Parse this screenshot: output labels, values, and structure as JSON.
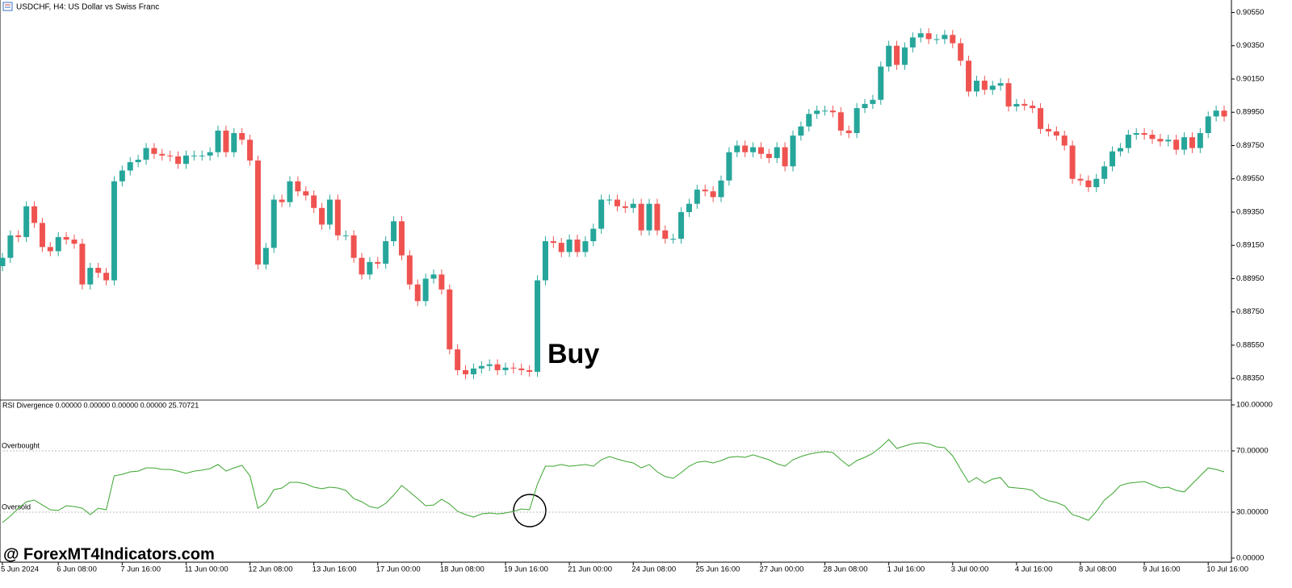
{
  "header": "USDCHF, H4:  US Dollar vs Swiss Franc",
  "watermark": "@ ForexMT4Indicators.com",
  "chart_data": [
    {
      "type": "candlestick",
      "annotation": "Buy",
      "up_color": "#26a69a",
      "down_color": "#ef5350",
      "ylim": [
        0.88225,
        0.90625
      ],
      "yticks": [
        {
          "value": 0.9055,
          "label": "0.90550"
        },
        {
          "value": 0.9035,
          "label": "0.90350"
        },
        {
          "value": 0.9015,
          "label": "0.90150"
        },
        {
          "value": 0.8995,
          "label": "0.89950"
        },
        {
          "value": 0.8975,
          "label": "0.89750"
        },
        {
          "value": 0.8955,
          "label": "0.89550"
        },
        {
          "value": 0.8935,
          "label": "0.89350"
        },
        {
          "value": 0.8915,
          "label": "0.89150"
        },
        {
          "value": 0.8895,
          "label": "0.88950"
        },
        {
          "value": 0.8875,
          "label": "0.88750"
        },
        {
          "value": 0.8855,
          "label": "0.88550"
        },
        {
          "value": 0.8835,
          "label": "0.88350"
        }
      ],
      "categories": [
        "5 Jun 2024",
        null,
        null,
        null,
        null,
        null,
        null,
        "6 Jun 08:00",
        null,
        null,
        null,
        null,
        null,
        null,
        null,
        "7 Jun 16:00",
        null,
        null,
        null,
        null,
        null,
        null,
        null,
        "11 Jun 00:00",
        null,
        null,
        null,
        null,
        null,
        null,
        null,
        "12 Jun 08:00",
        null,
        null,
        null,
        null,
        null,
        null,
        null,
        "13 Jun 16:00",
        null,
        null,
        null,
        null,
        null,
        null,
        null,
        "17 Jun 00:00",
        null,
        null,
        null,
        null,
        null,
        null,
        null,
        "18 Jun 08:00",
        null,
        null,
        null,
        null,
        null,
        null,
        null,
        "19 Jun 16:00",
        null,
        null,
        null,
        null,
        null,
        null,
        null,
        "21 Jun 00:00",
        null,
        null,
        null,
        null,
        null,
        null,
        null,
        "24 Jun 08:00",
        null,
        null,
        null,
        null,
        null,
        null,
        null,
        "25 Jun 16:00",
        null,
        null,
        null,
        null,
        null,
        null,
        null,
        "27 Jun 00:00",
        null,
        null,
        null,
        null,
        null,
        null,
        null,
        "28 Jun 08:00",
        null,
        null,
        null,
        null,
        null,
        null,
        null,
        "1 Jul 16:00",
        null,
        null,
        null,
        null,
        null,
        null,
        null,
        "3 Jul 00:00",
        null,
        null,
        null,
        null,
        null,
        null,
        null,
        "4 Jul 16:00",
        null,
        null,
        null,
        null,
        null,
        null,
        null,
        "8 Jul 08:00",
        null,
        null,
        null,
        null,
        null,
        null,
        null,
        "9 Jul 16:00",
        null,
        null,
        null,
        null,
        null,
        null,
        null,
        "10 Jul 16:00",
        null,
        null
      ],
      "open": [
        0.89025,
        0.89075,
        0.8921,
        0.892,
        0.89385,
        0.89285,
        0.8914,
        0.89115,
        0.892,
        0.89185,
        0.8916,
        0.88915,
        0.89015,
        0.88985,
        0.8894,
        0.89535,
        0.896,
        0.8965,
        0.89665,
        0.89735,
        0.897,
        0.8969,
        0.89685,
        0.8964,
        0.8969,
        0.8969,
        0.8969,
        0.8971,
        0.8984,
        0.8971,
        0.89825,
        0.89785,
        0.8966,
        0.89035,
        0.89135,
        0.89425,
        0.8941,
        0.89535,
        0.89475,
        0.8945,
        0.89375,
        0.89275,
        0.89425,
        0.8921,
        0.8921,
        0.89075,
        0.88975,
        0.8905,
        0.8904,
        0.89175,
        0.89295,
        0.8909,
        0.88915,
        0.88815,
        0.8895,
        0.88975,
        0.88885,
        0.88525,
        0.884,
        0.88375,
        0.8841,
        0.88425,
        0.88435,
        0.884,
        0.88415,
        0.8841,
        0.884,
        0.8839,
        0.8894,
        0.89175,
        0.89165,
        0.8911,
        0.89185,
        0.8911,
        0.89175,
        0.8925,
        0.89425,
        0.89425,
        0.89385,
        0.89375,
        0.894,
        0.8924,
        0.894,
        0.8924,
        0.8919,
        0.8919,
        0.8935,
        0.894,
        0.89485,
        0.89475,
        0.8944,
        0.8954,
        0.8971,
        0.8975,
        0.8971,
        0.8974,
        0.897,
        0.89675,
        0.8974,
        0.89625,
        0.8981,
        0.89865,
        0.8994,
        0.8996,
        0.8996,
        0.8995,
        0.8984,
        0.89825,
        0.89975,
        0.9,
        0.90025,
        0.90225,
        0.9035,
        0.90235,
        0.9034,
        0.904,
        0.90425,
        0.9039,
        0.9039,
        0.90415,
        0.90365,
        0.9026,
        0.90075,
        0.9014,
        0.90085,
        0.9011,
        0.90125,
        0.89985,
        0.9,
        0.8999,
        0.89975,
        0.8985,
        0.89835,
        0.8981,
        0.8975,
        0.8955,
        0.8954,
        0.895,
        0.8955,
        0.89625,
        0.89715,
        0.89735,
        0.89815,
        0.89825,
        0.89815,
        0.8979,
        0.89775,
        0.89785,
        0.89725,
        0.898,
        0.89735,
        0.89825,
        0.89925,
        0.8996
      ],
      "high": [
        0.89105,
        0.8924,
        0.8924,
        0.89415,
        0.89415,
        0.89315,
        0.8917,
        0.8923,
        0.8923,
        0.89215,
        0.8919,
        0.89045,
        0.89045,
        0.89015,
        0.89565,
        0.8963,
        0.8968,
        0.89695,
        0.89765,
        0.89765,
        0.8973,
        0.8972,
        0.89715,
        0.8972,
        0.8972,
        0.8972,
        0.8974,
        0.8987,
        0.8987,
        0.89855,
        0.89855,
        0.89815,
        0.8969,
        0.89165,
        0.89455,
        0.89455,
        0.89565,
        0.89565,
        0.89505,
        0.8948,
        0.89405,
        0.89455,
        0.89455,
        0.8924,
        0.8924,
        0.89105,
        0.8908,
        0.8908,
        0.89205,
        0.89325,
        0.89325,
        0.8912,
        0.88945,
        0.8898,
        0.89005,
        0.89005,
        0.88915,
        0.88555,
        0.8843,
        0.8844,
        0.88455,
        0.88465,
        0.88465,
        0.88445,
        0.88445,
        0.8844,
        0.8843,
        0.8897,
        0.89205,
        0.89205,
        0.89195,
        0.89215,
        0.89215,
        0.89205,
        0.8928,
        0.89455,
        0.89455,
        0.89455,
        0.89415,
        0.8943,
        0.8943,
        0.8943,
        0.8943,
        0.8927,
        0.8922,
        0.8938,
        0.8943,
        0.89515,
        0.89515,
        0.89505,
        0.8957,
        0.8974,
        0.8978,
        0.8978,
        0.8977,
        0.8977,
        0.8973,
        0.8977,
        0.8977,
        0.8984,
        0.89895,
        0.8997,
        0.8999,
        0.8999,
        0.8999,
        0.8998,
        0.8987,
        0.90005,
        0.9003,
        0.90055,
        0.90255,
        0.9038,
        0.9038,
        0.9037,
        0.9043,
        0.90455,
        0.90455,
        0.9042,
        0.90445,
        0.90445,
        0.90395,
        0.9029,
        0.9017,
        0.9017,
        0.9014,
        0.90155,
        0.90155,
        0.9003,
        0.9003,
        0.9002,
        0.90005,
        0.8988,
        0.89865,
        0.8984,
        0.8978,
        0.8958,
        0.8957,
        0.8958,
        0.89655,
        0.89745,
        0.89765,
        0.89845,
        0.89855,
        0.89855,
        0.89845,
        0.8982,
        0.89815,
        0.89815,
        0.8983,
        0.8983,
        0.89855,
        0.89955,
        0.8999,
        0.8999
      ],
      "low": [
        0.88995,
        0.89045,
        0.8917,
        0.8917,
        0.89255,
        0.8911,
        0.89085,
        0.89085,
        0.89155,
        0.8913,
        0.88885,
        0.88885,
        0.88955,
        0.8891,
        0.8891,
        0.89505,
        0.8957,
        0.8962,
        0.89635,
        0.8967,
        0.8966,
        0.89655,
        0.8961,
        0.8961,
        0.8966,
        0.8966,
        0.8966,
        0.8968,
        0.8968,
        0.8968,
        0.89755,
        0.8963,
        0.89005,
        0.89005,
        0.89105,
        0.8938,
        0.8938,
        0.89445,
        0.8942,
        0.89345,
        0.89245,
        0.89245,
        0.8918,
        0.8918,
        0.89045,
        0.88945,
        0.88945,
        0.8901,
        0.8901,
        0.89145,
        0.8906,
        0.88885,
        0.88785,
        0.88785,
        0.8892,
        0.88855,
        0.88495,
        0.8837,
        0.88345,
        0.88345,
        0.8838,
        0.88395,
        0.8837,
        0.8837,
        0.8838,
        0.8837,
        0.8836,
        0.8836,
        0.8891,
        0.89135,
        0.8908,
        0.8908,
        0.8908,
        0.8908,
        0.89145,
        0.8922,
        0.89395,
        0.89355,
        0.89345,
        0.89345,
        0.8921,
        0.8921,
        0.8921,
        0.8916,
        0.8916,
        0.8916,
        0.8932,
        0.8937,
        0.89445,
        0.8941,
        0.8941,
        0.8951,
        0.8968,
        0.8968,
        0.8968,
        0.8967,
        0.89645,
        0.89645,
        0.89595,
        0.89595,
        0.8978,
        0.89835,
        0.8991,
        0.8993,
        0.8992,
        0.8981,
        0.89795,
        0.89795,
        0.89945,
        0.8997,
        0.89995,
        0.90195,
        0.90205,
        0.90205,
        0.9031,
        0.9037,
        0.9036,
        0.9036,
        0.9036,
        0.90335,
        0.9023,
        0.90045,
        0.90045,
        0.90055,
        0.90055,
        0.9008,
        0.89955,
        0.89955,
        0.8996,
        0.89945,
        0.8982,
        0.89805,
        0.8978,
        0.8972,
        0.8952,
        0.8951,
        0.8947,
        0.8947,
        0.8952,
        0.89595,
        0.89685,
        0.89705,
        0.89785,
        0.89785,
        0.8976,
        0.89745,
        0.89745,
        0.89695,
        0.89695,
        0.89705,
        0.89705,
        0.89795,
        0.89895,
        0.89895
      ],
      "close": [
        0.89075,
        0.8921,
        0.892,
        0.89385,
        0.89285,
        0.8914,
        0.89115,
        0.892,
        0.89185,
        0.8916,
        0.88915,
        0.89015,
        0.88985,
        0.8894,
        0.89535,
        0.896,
        0.8965,
        0.89665,
        0.89735,
        0.897,
        0.8969,
        0.89685,
        0.8964,
        0.8969,
        0.8969,
        0.8969,
        0.8971,
        0.8984,
        0.8971,
        0.89825,
        0.89785,
        0.8966,
        0.89035,
        0.89135,
        0.89425,
        0.8941,
        0.89535,
        0.89475,
        0.8945,
        0.89375,
        0.89275,
        0.89425,
        0.8921,
        0.8921,
        0.89075,
        0.88975,
        0.8905,
        0.8904,
        0.89175,
        0.89295,
        0.8909,
        0.88915,
        0.88815,
        0.8895,
        0.88975,
        0.88885,
        0.88525,
        0.884,
        0.88375,
        0.8841,
        0.88425,
        0.88435,
        0.884,
        0.88415,
        0.8841,
        0.884,
        0.8839,
        0.8894,
        0.89175,
        0.89165,
        0.8911,
        0.89185,
        0.8911,
        0.89175,
        0.8925,
        0.89425,
        0.89425,
        0.89385,
        0.89375,
        0.894,
        0.8924,
        0.894,
        0.8924,
        0.8919,
        0.8919,
        0.8935,
        0.894,
        0.89485,
        0.89475,
        0.8944,
        0.8954,
        0.8971,
        0.8975,
        0.8971,
        0.8974,
        0.897,
        0.89675,
        0.8974,
        0.89625,
        0.8981,
        0.89865,
        0.8994,
        0.8996,
        0.8996,
        0.8995,
        0.8984,
        0.89825,
        0.89975,
        0.9,
        0.90025,
        0.90225,
        0.9035,
        0.90235,
        0.9034,
        0.904,
        0.90425,
        0.9039,
        0.9039,
        0.90415,
        0.90365,
        0.9026,
        0.90075,
        0.9014,
        0.90085,
        0.9011,
        0.90125,
        0.89985,
        0.9,
        0.8999,
        0.89975,
        0.8985,
        0.89835,
        0.8981,
        0.8975,
        0.8955,
        0.8954,
        0.895,
        0.8955,
        0.89625,
        0.89715,
        0.89735,
        0.89815,
        0.89825,
        0.89815,
        0.8979,
        0.89775,
        0.89785,
        0.89725,
        0.898,
        0.89735,
        0.89825,
        0.89925,
        0.8996,
        0.89925
      ]
    },
    {
      "type": "line",
      "title": "RSI Divergence 0.00000 0.00000 0.00000 0.00000 25.70721",
      "color": "#3aa52e",
      "ylim": [
        0,
        100
      ],
      "yticks": [
        {
          "value": 100,
          "label": "100.00000"
        },
        {
          "value": 70,
          "label": "70.00000"
        },
        {
          "value": 30,
          "label": "30.00000"
        },
        {
          "value": 0,
          "label": "0.00000"
        }
      ],
      "levels": [
        {
          "value": 70,
          "label": "Overbought"
        },
        {
          "value": 30,
          "label": "Oversold"
        }
      ],
      "values": [
        23.2,
        27.4,
        32.6,
        36.8,
        37.9,
        34.7,
        31.6,
        31.1,
        34.2,
        33.7,
        32.6,
        28.4,
        32.6,
        31.6,
        53.7,
        54.7,
        56.3,
        56.8,
        58.9,
        58.9,
        57.9,
        57.9,
        56.8,
        55.3,
        56.8,
        57.4,
        58.4,
        61.1,
        56.8,
        58.9,
        60.5,
        53.7,
        32.6,
        36.3,
        44.7,
        45.8,
        49.5,
        49.5,
        48.4,
        46.3,
        45.3,
        46.3,
        45.8,
        44.2,
        38.9,
        36.8,
        33.7,
        32.6,
        35.8,
        41.1,
        47.4,
        43.2,
        38.9,
        34.2,
        34.7,
        38.4,
        35.3,
        30.5,
        28.4,
        26.8,
        28.9,
        29.5,
        28.9,
        29.5,
        30.5,
        32.1,
        31.6,
        48.4,
        60.0,
        60.0,
        61.1,
        60.0,
        60.5,
        61.1,
        60.0,
        64.2,
        66.3,
        64.7,
        63.2,
        62.1,
        58.9,
        61.1,
        56.3,
        53.2,
        52.1,
        55.8,
        60.0,
        62.6,
        63.2,
        62.1,
        63.7,
        65.8,
        66.3,
        65.8,
        67.4,
        65.8,
        64.2,
        61.6,
        60.0,
        64.2,
        66.3,
        67.9,
        68.9,
        69.5,
        68.9,
        64.2,
        60.0,
        63.7,
        65.8,
        68.4,
        72.6,
        77.4,
        71.6,
        73.2,
        74.7,
        75.3,
        74.7,
        72.6,
        72.1,
        66.8,
        57.9,
        49.5,
        52.6,
        48.9,
        51.6,
        52.6,
        46.3,
        45.8,
        45.3,
        44.2,
        39.5,
        37.4,
        36.3,
        34.2,
        28.4,
        26.8,
        24.7,
        30.5,
        37.9,
        42.1,
        47.4,
        48.9,
        49.5,
        50.0,
        47.9,
        45.8,
        46.3,
        44.2,
        43.2,
        48.4,
        53.7,
        58.9,
        57.9,
        56.3
      ]
    }
  ]
}
